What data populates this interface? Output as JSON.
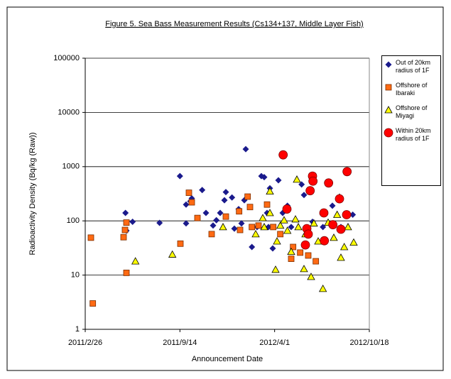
{
  "chart_data": {
    "type": "scatter",
    "title": "Figure 5. Sea Bass Measurement Results (Cs134+137, Middle Layer Fish)",
    "x_label": "Announcement Date",
    "y_label": "Radioactivity Density (Bq/kg (Raw))",
    "xlim": [
      "2011/2/26",
      "2012/10/18"
    ],
    "xticks": [
      "2011/2/26",
      "2011/9/14",
      "2012/4/1",
      "2012/10/18"
    ],
    "ylim": [
      1,
      100000
    ],
    "yticks": [
      1,
      10,
      100,
      1000,
      10000,
      100000
    ],
    "ylog": true,
    "grid": true,
    "legend": "right",
    "series": [
      {
        "name": "Out of 20km radius of 1F",
        "color": "#1a1a8c",
        "marker": "diamond",
        "x": [
          "2011/5/22",
          "2011/5/24",
          "2011/6/6",
          "2011/8/2",
          "2011/9/14",
          "2011/9/27",
          "2011/9/27",
          "2011/10/6",
          "2011/10/9",
          "2011/10/31",
          "2011/11/8",
          "2011/11/23",
          "2011/11/30",
          "2011/12/8",
          "2011/12/17",
          "2011/12/20",
          "2012/1/2",
          "2012/1/16",
          "2012/1/28",
          "2012/1/31",
          "2012/3/4",
          "2012/3/10",
          "2012/3/16",
          "2012/3/19",
          "2012/3/22",
          "2012/3/28",
          "2012/4/9",
          "2012/4/18",
          "2012/4/28",
          "2012/5/6",
          "2012/5/28",
          "2012/6/2",
          "2012/6/20",
          "2012/7/12",
          "2012/8/1",
          "2012/8/19",
          "2012/9/13",
          "2012/2/13",
          "2012/2/24",
          "2012/1/7",
          "2012/1/22"
        ],
        "values": [
          140,
          66,
          96,
          92,
          670,
          90,
          200,
          230,
          260,
          370,
          140,
          82,
          103,
          140,
          240,
          340,
          270,
          165,
          240,
          2100,
          670,
          640,
          140,
          77,
          400,
          31,
          560,
          140,
          190,
          77,
          470,
          300,
          96,
          77,
          190,
          77,
          130,
          33,
          77,
          72,
          90
        ]
      },
      {
        "name": "Offshore of Ibaraki",
        "color": "#ff6a13",
        "marker": "square",
        "x": [
          "2011/3/10",
          "2011/3/14",
          "2011/5/18",
          "2011/5/21",
          "2011/5/24",
          "2011/5/24",
          "2011/9/15",
          "2011/10/3",
          "2011/10/9",
          "2011/10/21",
          "2011/11/20",
          "2011/12/20",
          "2012/1/17",
          "2012/1/19",
          "2012/2/4",
          "2012/2/9",
          "2012/2/13",
          "2012/2/27",
          "2012/3/16",
          "2012/3/29",
          "2012/4/13",
          "2012/5/6",
          "2012/5/10",
          "2012/5/25",
          "2012/6/11",
          "2012/6/27"
        ],
        "values": [
          49,
          3,
          50,
          68,
          93,
          11,
          38,
          330,
          220,
          113,
          57,
          120,
          150,
          68,
          280,
          180,
          77,
          82,
          200,
          77,
          57,
          20,
          33,
          26,
          23,
          18
        ]
      },
      {
        "name": "Offshore of Miyagi",
        "color": "#ffff00",
        "marker": "triangle",
        "x": [
          "2011/6/12",
          "2011/8/29",
          "2011/12/14",
          "2012/2/21",
          "2012/3/7",
          "2012/3/22",
          "2012/3/22",
          "2012/4/3",
          "2012/4/13",
          "2012/4/21",
          "2012/4/28",
          "2012/5/6",
          "2012/5/15",
          "2012/5/18",
          "2012/5/21",
          "2012/6/2",
          "2012/6/5",
          "2012/6/17",
          "2012/6/23",
          "2012/7/2",
          "2012/7/12",
          "2012/7/23",
          "2012/8/4",
          "2012/8/11",
          "2012/8/16",
          "2012/8/19",
          "2012/8/26",
          "2012/9/3",
          "2012/9/15",
          "2012/4/6",
          "2012/3/10"
        ],
        "values": [
          18,
          24,
          77,
          57,
          113,
          140,
          350,
          12.6,
          82,
          103,
          66,
          27,
          107,
          580,
          77,
          13,
          57,
          9.3,
          90,
          42,
          5.6,
          93,
          49,
          130,
          270,
          21,
          33,
          77,
          40,
          42,
          77
        ]
      },
      {
        "name": "Within 20km radius of 1F",
        "color": "#ff0000",
        "marker": "circle",
        "x": [
          "2012/4/19",
          "2012/4/27",
          "2012/6/8",
          "2012/6/15",
          "2012/6/20",
          "2012/6/21",
          "2012/7/14",
          "2012/7/15",
          "2012/7/24",
          "2012/8/2",
          "2012/8/16",
          "2012/8/19",
          "2012/8/31",
          "2012/9/1",
          "2012/6/5",
          "2012/6/11"
        ],
        "values": [
          1650,
          165,
          72,
          360,
          670,
          540,
          140,
          43,
          500,
          85,
          255,
          70,
          130,
          810,
          36,
          57
        ]
      }
    ]
  }
}
